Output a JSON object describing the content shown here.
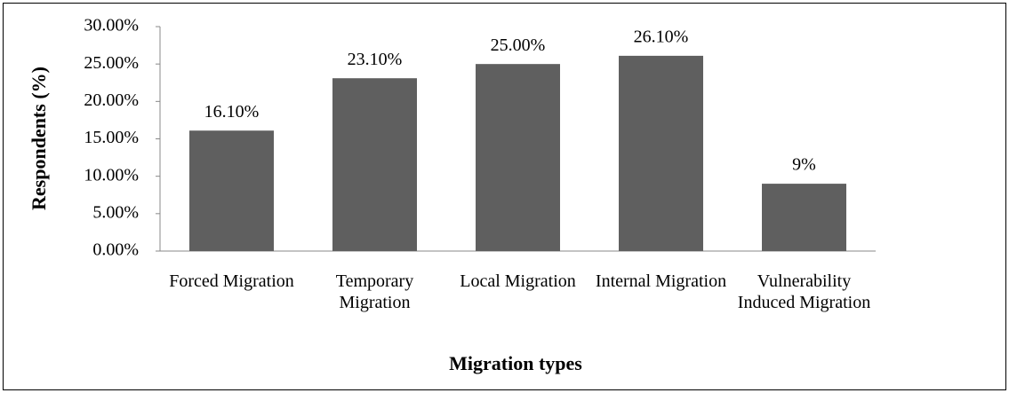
{
  "chart_data": {
    "type": "bar",
    "categories": [
      "Forced Migration",
      "Temporary Migration",
      "Local Migration",
      "Internal Migration",
      "Vulnerability Induced Migration"
    ],
    "values": [
      16.1,
      23.1,
      25,
      26.1,
      9
    ],
    "value_labels": [
      "16.10%",
      "23.10%",
      "25.00%",
      "26.10%",
      "9%"
    ],
    "color": "#5f5f5f",
    "x_label": "Migration types",
    "y_label": "Respondents (%)",
    "ylim": [
      0,
      30
    ],
    "yticks": [
      {
        "value": 0,
        "label": "0.00%"
      },
      {
        "value": 5,
        "label": "5.00%"
      },
      {
        "value": 10,
        "label": "10.00%"
      },
      {
        "value": 15,
        "label": "15.00%"
      },
      {
        "value": 20,
        "label": "20.00%"
      },
      {
        "value": 25,
        "label": "25.00%"
      },
      {
        "value": 30,
        "label": "30.00%"
      }
    ],
    "grid": false
  }
}
